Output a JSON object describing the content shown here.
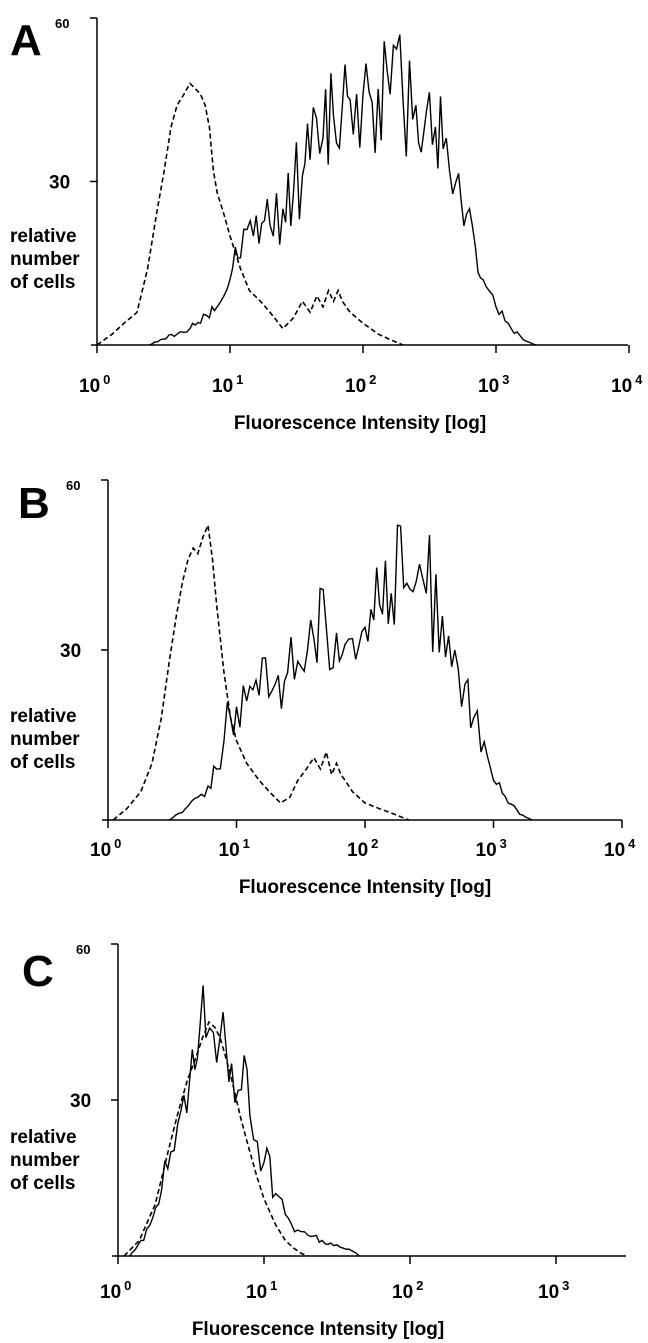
{
  "chart_data": [
    {
      "type": "line",
      "panel": "A",
      "xlabel": "Fluorescence Intensity [log]",
      "ylabel": [
        "relative",
        "number",
        "of cells"
      ],
      "x_scale": "log",
      "xlim": [
        1,
        10000
      ],
      "ylim": [
        0,
        60
      ],
      "y_ticks": [
        {
          "value": 30,
          "label": "30"
        },
        {
          "value": 60,
          "label": "60"
        }
      ],
      "x_ticks": [
        {
          "value": 1,
          "base": "10",
          "exp": "0"
        },
        {
          "value": 10,
          "base": "10",
          "exp": "1"
        },
        {
          "value": 100,
          "base": "10",
          "exp": "2"
        },
        {
          "value": 1000,
          "base": "10",
          "exp": "3"
        },
        {
          "value": 10000,
          "base": "10",
          "exp": "4"
        }
      ],
      "series": [
        {
          "style": "dashed",
          "x": [
            1,
            1.3,
            1.6,
            2,
            2.4,
            2.8,
            3.2,
            3.6,
            4,
            4.5,
            5,
            5.5,
            6,
            6.5,
            7,
            7.5,
            8,
            9,
            10,
            12,
            14,
            17,
            20,
            25,
            30,
            35,
            40,
            45,
            50,
            55,
            60,
            65,
            70,
            80,
            100,
            130,
            160,
            200
          ],
          "y": [
            0,
            2,
            4,
            6,
            14,
            24,
            32,
            40,
            44,
            46,
            48,
            47,
            46,
            44,
            40,
            32,
            28,
            24,
            20,
            14,
            10,
            8,
            6,
            3,
            5,
            8,
            6,
            9,
            7,
            10,
            8,
            10,
            8,
            6,
            4,
            2,
            1,
            0
          ]
        },
        {
          "style": "solid",
          "x": [
            2.5,
            3,
            4,
            5,
            6,
            7,
            8,
            9,
            10,
            12,
            15,
            20,
            25,
            30,
            35,
            40,
            50,
            60,
            70,
            80,
            100,
            130,
            160,
            200,
            250,
            300,
            350,
            400,
            500,
            600,
            700,
            800,
            1000,
            1300,
            1600,
            2000
          ],
          "y": [
            0,
            1,
            2,
            3,
            4,
            5,
            7,
            9,
            12,
            16,
            20,
            22,
            25,
            28,
            31,
            34,
            38,
            42,
            44,
            45,
            46,
            47,
            46,
            45,
            44,
            43,
            40,
            36,
            30,
            24,
            18,
            12,
            7,
            3,
            1,
            0
          ]
        }
      ]
    },
    {
      "type": "line",
      "panel": "B",
      "xlabel": "Fluorescence Intensity [log]",
      "ylabel": [
        "relative",
        "number",
        "of cells"
      ],
      "x_scale": "log",
      "xlim": [
        1,
        10000
      ],
      "ylim": [
        0,
        60
      ],
      "y_ticks": [
        {
          "value": 30,
          "label": "30"
        },
        {
          "value": 60,
          "label": "60"
        }
      ],
      "x_ticks": [
        {
          "value": 1,
          "base": "10",
          "exp": "0"
        },
        {
          "value": 10,
          "base": "10",
          "exp": "1"
        },
        {
          "value": 100,
          "base": "10",
          "exp": "2"
        },
        {
          "value": 1000,
          "base": "10",
          "exp": "3"
        },
        {
          "value": 10000,
          "base": "10",
          "exp": "4"
        }
      ],
      "series": [
        {
          "style": "dashed",
          "x": [
            1.1,
            1.4,
            1.8,
            2.2,
            2.6,
            3,
            3.4,
            3.8,
            4.2,
            4.6,
            5,
            5.5,
            6,
            6.5,
            7,
            8,
            9,
            10,
            12,
            15,
            18,
            22,
            26,
            30,
            35,
            40,
            45,
            50,
            55,
            60,
            65,
            70,
            80,
            100,
            130,
            170,
            220
          ],
          "y": [
            0,
            2,
            5,
            10,
            18,
            28,
            36,
            42,
            46,
            48,
            47,
            50,
            52,
            46,
            38,
            26,
            18,
            14,
            10,
            7,
            5,
            3,
            4,
            7,
            9,
            11,
            9,
            12,
            8,
            10,
            8,
            7,
            5,
            3,
            2,
            1,
            0
          ]
        },
        {
          "style": "solid",
          "x": [
            3,
            4,
            5,
            6,
            7,
            8,
            9,
            10,
            12,
            15,
            20,
            25,
            30,
            40,
            50,
            60,
            70,
            80,
            100,
            130,
            160,
            200,
            250,
            300,
            400,
            500,
            600,
            700,
            800,
            1000,
            1300,
            1600,
            2000
          ],
          "y": [
            0,
            2,
            4,
            6,
            9,
            14,
            18,
            20,
            21,
            22,
            24,
            26,
            28,
            32,
            34,
            33,
            31,
            32,
            34,
            38,
            40,
            41,
            42,
            40,
            36,
            30,
            24,
            18,
            12,
            7,
            3,
            1,
            0
          ]
        }
      ]
    },
    {
      "type": "line",
      "panel": "C",
      "xlabel": "Fluorescence Intensity [log]",
      "ylabel": [
        "relative",
        "number",
        "of cells"
      ],
      "x_scale": "log",
      "xlim": [
        1,
        5000
      ],
      "ylim": [
        0,
        60
      ],
      "y_ticks": [
        {
          "value": 30,
          "label": "30"
        },
        {
          "value": 60,
          "label": "60"
        }
      ],
      "x_ticks": [
        {
          "value": 1,
          "base": "10",
          "exp": "0"
        },
        {
          "value": 10,
          "base": "10",
          "exp": "1"
        },
        {
          "value": 100,
          "base": "10",
          "exp": "2"
        },
        {
          "value": 1000,
          "base": "10",
          "exp": "3"
        }
      ],
      "series": [
        {
          "style": "dashed",
          "x": [
            1.1,
            1.4,
            1.8,
            2.2,
            2.6,
            3,
            3.4,
            3.8,
            4.2,
            4.6,
            5,
            5.5,
            6,
            7,
            8,
            9,
            10,
            12,
            14,
            16,
            18,
            20
          ],
          "y": [
            0,
            3,
            10,
            20,
            28,
            34,
            38,
            42,
            45,
            44,
            42,
            38,
            34,
            26,
            20,
            15,
            11,
            6,
            3,
            1.5,
            0.5,
            0
          ]
        },
        {
          "style": "solid",
          "x": [
            1.2,
            1.5,
            1.9,
            2.3,
            2.7,
            3.1,
            3.5,
            4,
            4.5,
            5,
            5.5,
            6,
            7,
            8,
            9,
            10,
            12,
            14,
            17,
            20,
            25,
            30,
            35,
            40,
            45
          ],
          "y": [
            0,
            3,
            10,
            20,
            28,
            34,
            38,
            42,
            43,
            42,
            40,
            37,
            32,
            27,
            22,
            18,
            12,
            8,
            5,
            4,
            3,
            2,
            1.5,
            1,
            0
          ]
        }
      ]
    }
  ]
}
